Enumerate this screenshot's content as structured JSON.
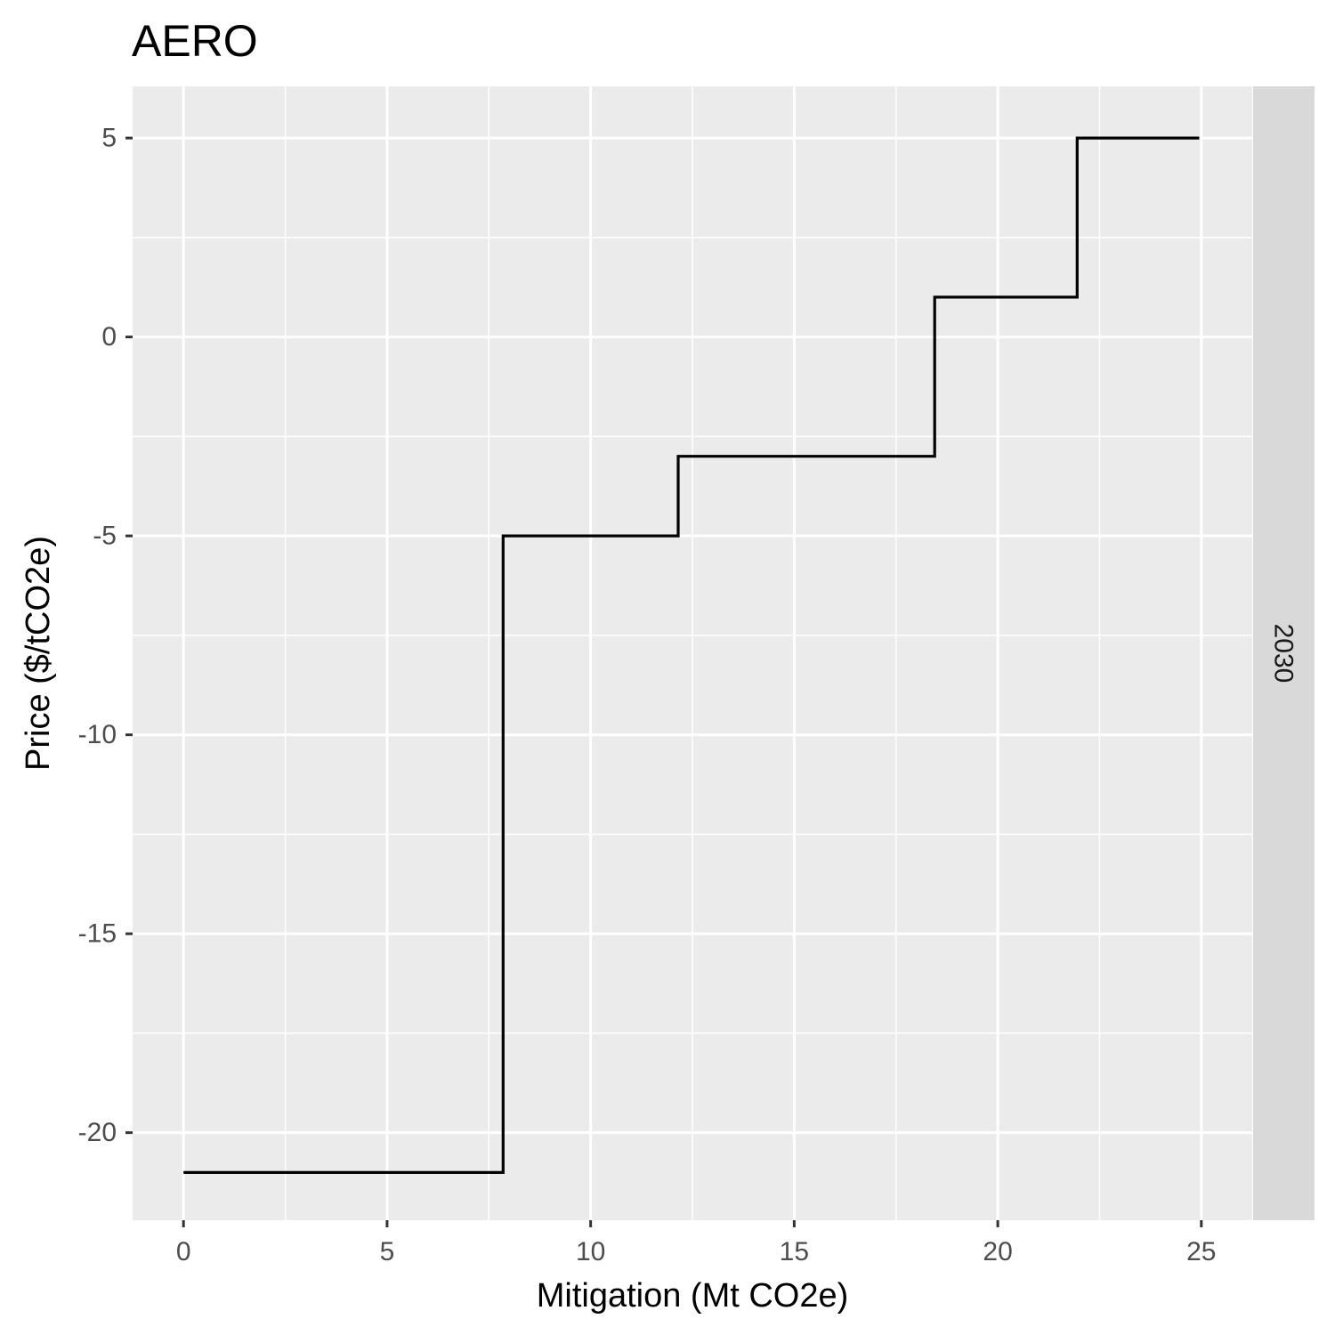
{
  "chart_data": {
    "type": "line",
    "subtype": "step",
    "title": "AERO",
    "xlabel": "Mitigation (Mt CO2e)",
    "ylabel": "Price ($/tCO2e)",
    "facet_label": "2030",
    "xlim": [
      -1.25,
      26.25
    ],
    "ylim": [
      -22.2,
      6.3
    ],
    "x_ticks": [
      0,
      5,
      10,
      15,
      20,
      25
    ],
    "y_ticks": [
      5,
      0,
      -5,
      -10,
      -15,
      -20
    ],
    "x_tick_labels": [
      "0",
      "5",
      "10",
      "15",
      "20",
      "25"
    ],
    "y_tick_labels": [
      "5",
      "0",
      "-5",
      "-10",
      "-15",
      "-20"
    ],
    "grid": true,
    "series": [
      {
        "x": [
          0,
          7.85,
          7.85,
          12.15,
          12.15,
          18.45,
          18.45,
          21.95,
          21.95,
          24.95
        ],
        "y": [
          -21,
          -21,
          -5,
          -5,
          -3,
          -3,
          1,
          1,
          5,
          5
        ],
        "color": "#000000"
      }
    ],
    "colors": {
      "panel_bg": "#ebebeb",
      "strip_bg": "#d9d9d9",
      "grid": "#ffffff",
      "tick": "#333333"
    }
  }
}
